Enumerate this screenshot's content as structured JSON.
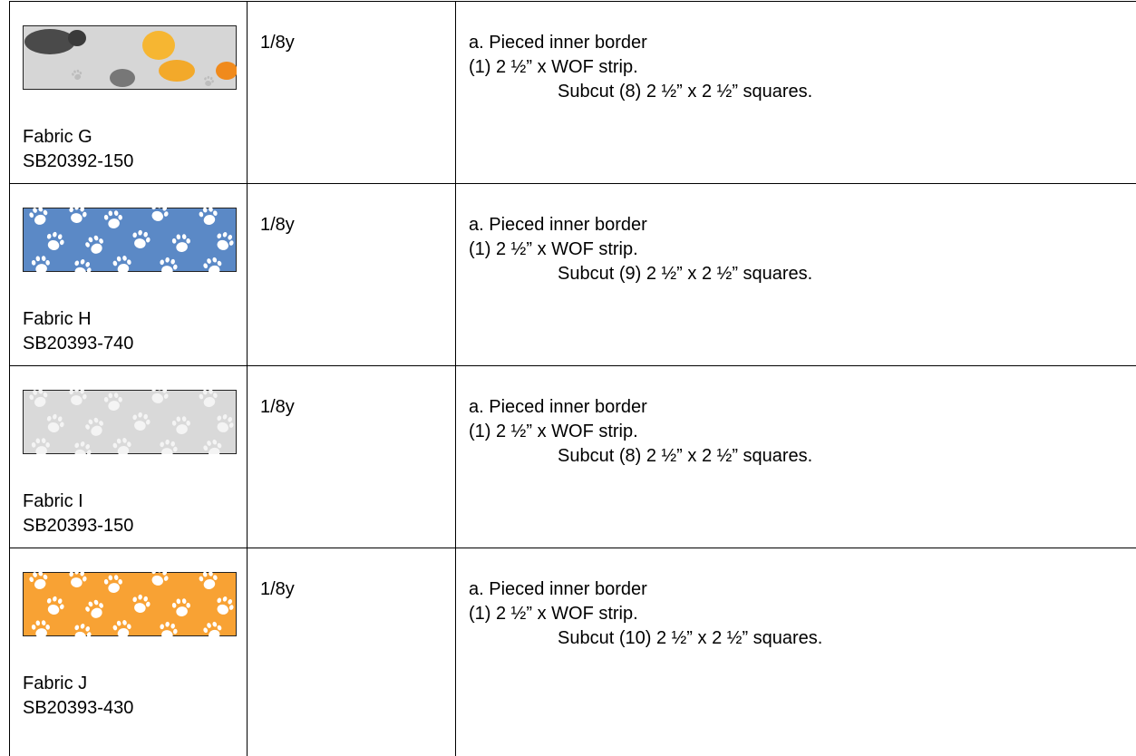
{
  "table": {
    "rows": [
      {
        "fabric": "Fabric G",
        "code": "SB20392-150",
        "amount": "1/8y",
        "lines": [
          "a. Pieced inner border",
          "(1) 2 ½” x WOF strip.",
          "Subcut (8) 2 ½” x 2 ½” squares."
        ]
      },
      {
        "fabric": "Fabric H",
        "code": "SB20393-740",
        "amount": "1/8y",
        "lines": [
          "a. Pieced inner border",
          "(1) 2 ½” x WOF strip.",
          "Subcut (9) 2 ½” x 2 ½” squares."
        ]
      },
      {
        "fabric": "Fabric I",
        "code": "SB20393-150",
        "amount": "1/8y",
        "lines": [
          "a. Pieced inner border",
          "(1) 2 ½” x WOF strip.",
          "Subcut (8) 2 ½” x 2 ½” squares."
        ]
      },
      {
        "fabric": "Fabric J",
        "code": "SB20393-430",
        "amount": "1/8y",
        "lines": [
          "a. Pieced inner border",
          "(1) 2 ½” x WOF strip.",
          "Subcut (10) 2 ½” x 2 ½” squares."
        ]
      }
    ]
  }
}
